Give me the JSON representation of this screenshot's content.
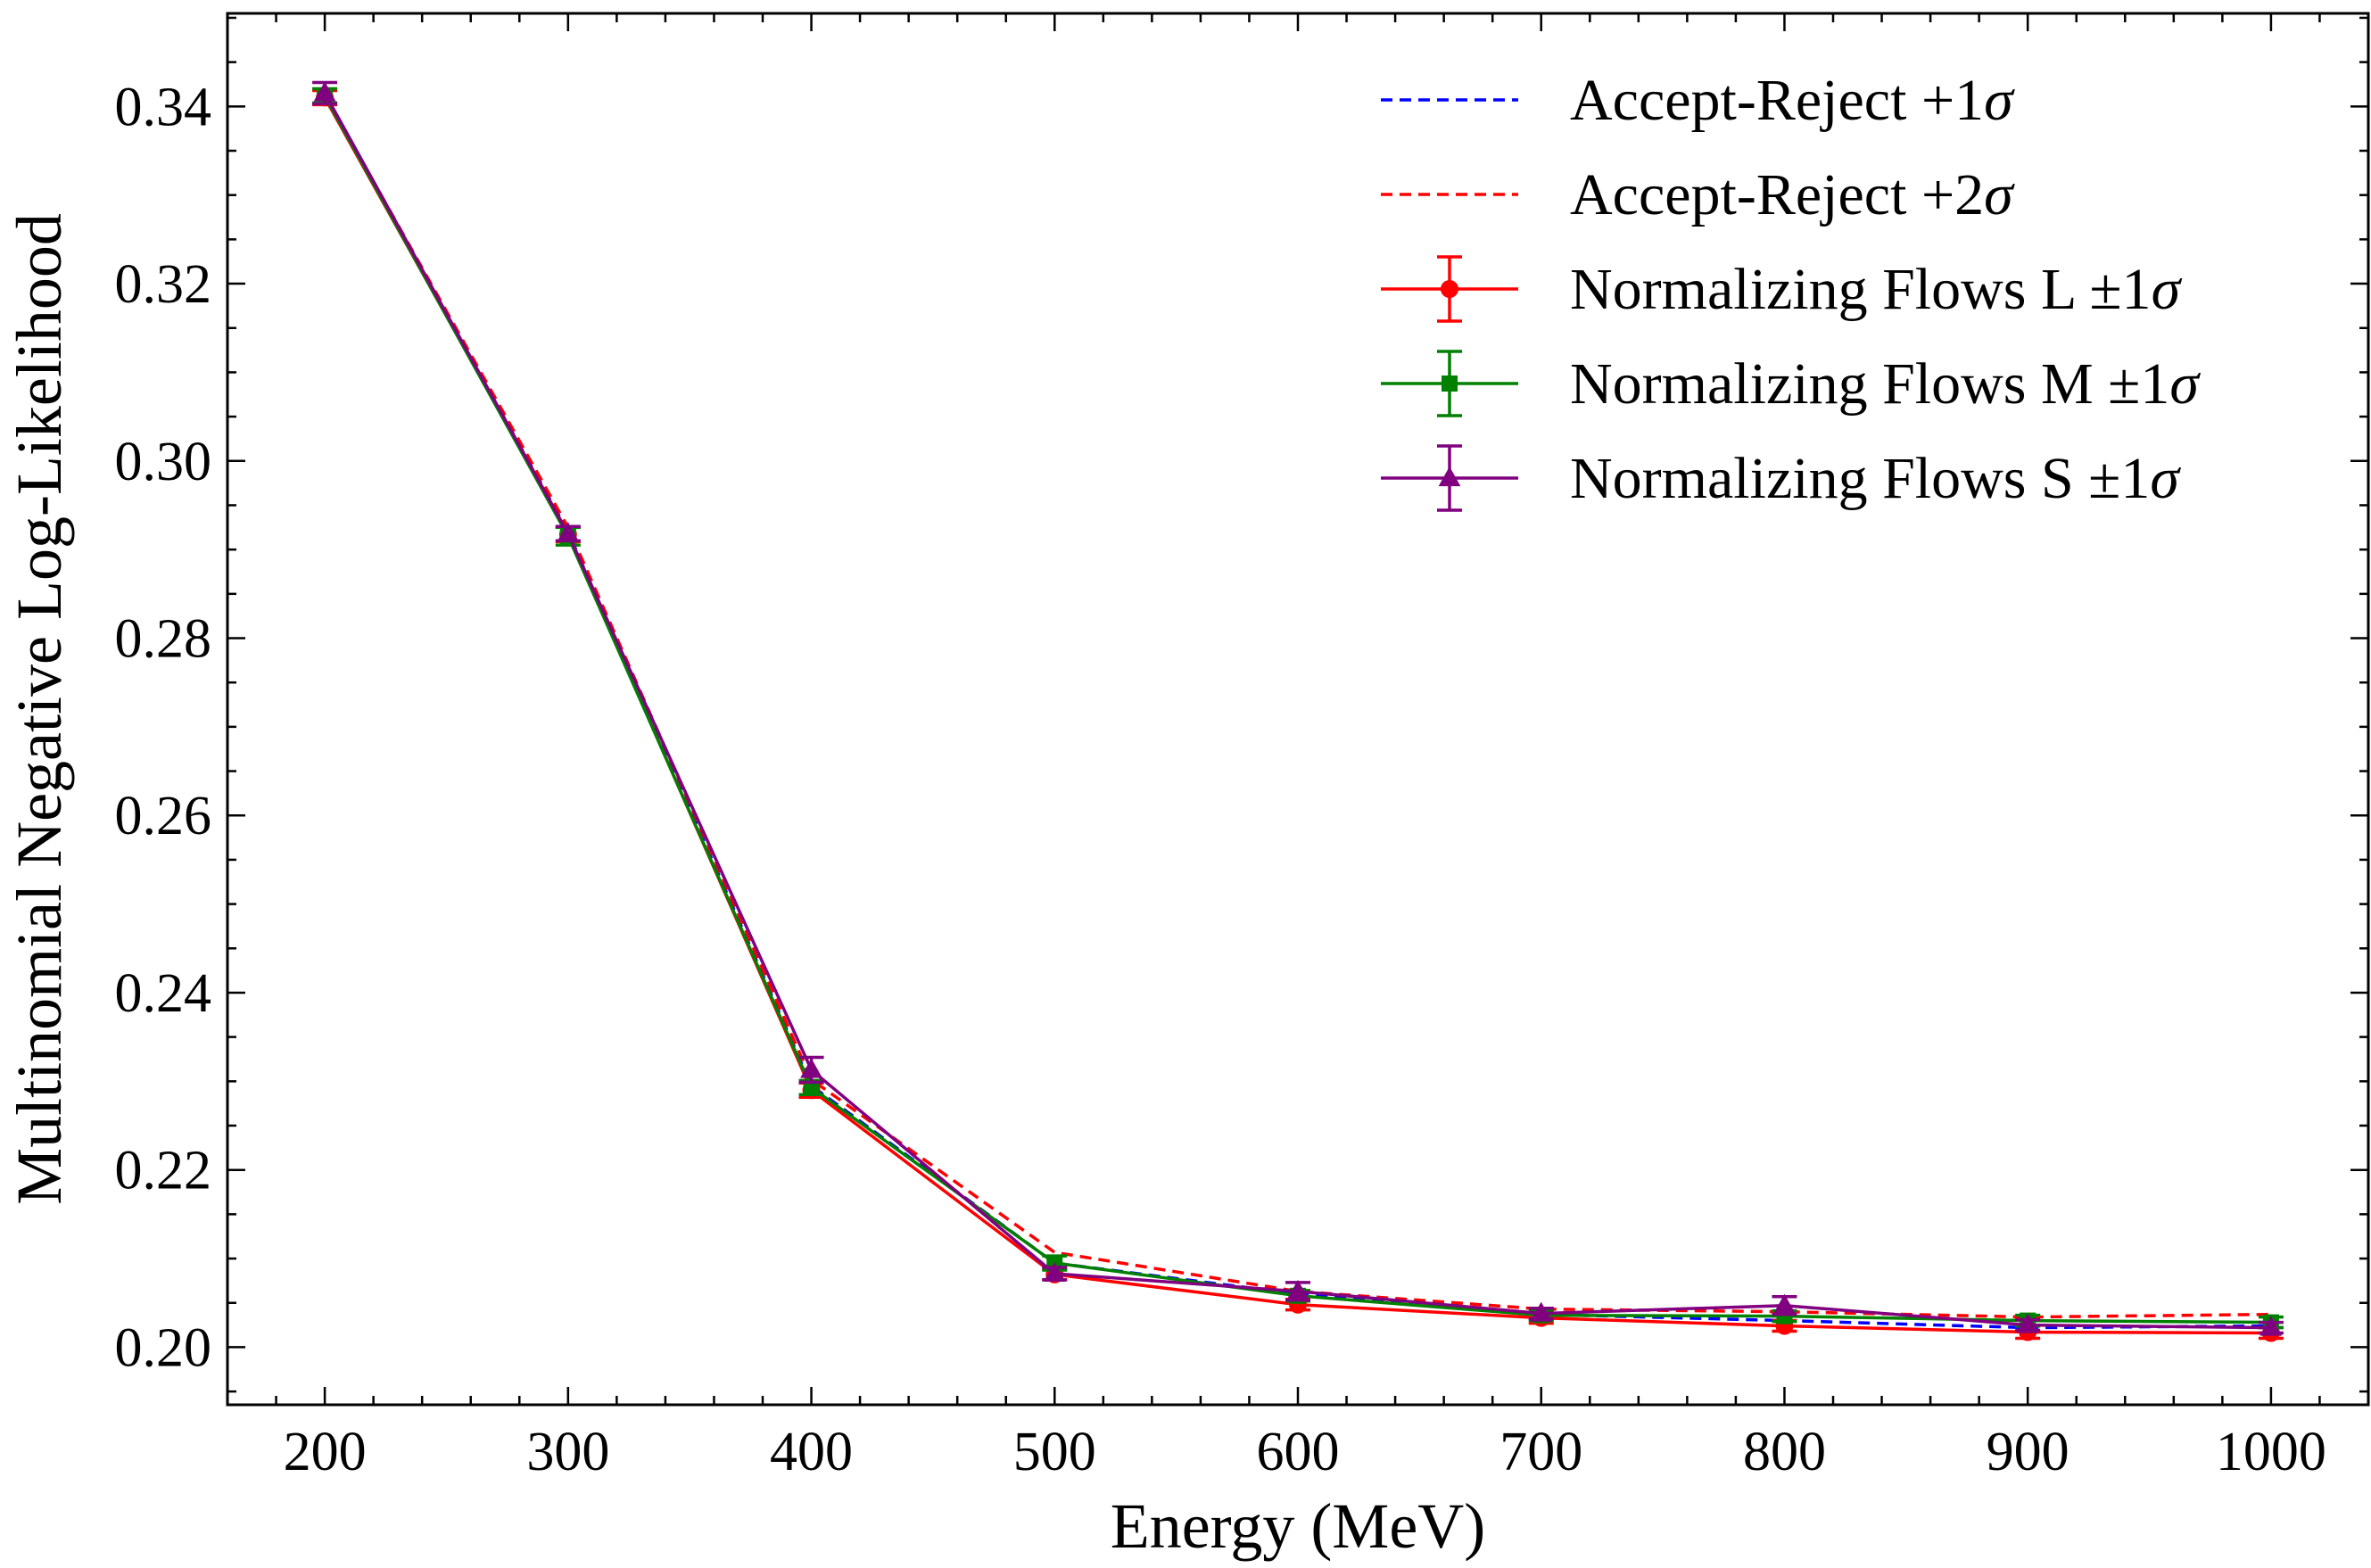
{
  "chart_data": {
    "type": "line",
    "title": "",
    "xlabel": "Energy (MeV)",
    "ylabel": "Multinomial Negative Log-Likelihood",
    "xlim": [
      160,
      1040
    ],
    "ylim": [
      0.1935,
      0.3505
    ],
    "xticks": [
      200,
      300,
      400,
      500,
      600,
      700,
      800,
      900,
      1000
    ],
    "xtick_labels": [
      "200",
      "300",
      "400",
      "500",
      "600",
      "700",
      "800",
      "900",
      "1000"
    ],
    "yticks": [
      0.2,
      0.22,
      0.24,
      0.26,
      0.28,
      0.3,
      0.32,
      0.34
    ],
    "ytick_labels": [
      "0.20",
      "0.22",
      "0.24",
      "0.26",
      "0.28",
      "0.30",
      "0.32",
      "0.34"
    ],
    "grid": false,
    "legend_position": "top-right",
    "x": [
      200,
      300,
      400,
      500,
      600,
      700,
      800,
      900,
      1000
    ],
    "series": [
      {
        "name": "Accept-Reject +1σ",
        "label_main": "Accept-Reject +1",
        "label_sym": "σ",
        "color": "#0000ff",
        "style": "dashed",
        "marker": "none",
        "values": [
          0.341,
          0.292,
          0.2295,
          0.2095,
          0.206,
          0.2037,
          0.203,
          0.2022,
          0.2024
        ],
        "errors": null
      },
      {
        "name": "Accept-Reject +2σ",
        "label_main": "Accept-Reject +2",
        "label_sym": "σ",
        "color": "#ff0000",
        "style": "dashed",
        "marker": "none",
        "values": [
          0.3413,
          0.2925,
          0.2302,
          0.2107,
          0.2063,
          0.2043,
          0.204,
          0.2034,
          0.2037
        ],
        "errors": null
      },
      {
        "name": "Normalizing Flows L ±1σ",
        "label_main": "Normalizing Flows L ±1",
        "label_sym": "σ",
        "color": "#ff0000",
        "style": "solid",
        "marker": "circle",
        "values": [
          0.341,
          0.2917,
          0.229,
          0.2082,
          0.2048,
          0.2033,
          0.2024,
          0.2017,
          0.2016
        ],
        "errors": [
          0.0008,
          0.0008,
          0.0008,
          0.0006,
          0.0006,
          0.0006,
          0.0006,
          0.0007,
          0.0006
        ]
      },
      {
        "name": "Normalizing Flows M ±1σ",
        "label_main": "Normalizing Flows M ±1",
        "label_sym": "σ",
        "color": "#008000",
        "style": "solid",
        "marker": "square",
        "values": [
          0.3412,
          0.2915,
          0.2293,
          0.2095,
          0.2058,
          0.2036,
          0.2035,
          0.203,
          0.2028
        ],
        "errors": [
          0.0008,
          0.001,
          0.0008,
          0.0008,
          0.0006,
          0.0006,
          0.0006,
          0.0006,
          0.0006
        ]
      },
      {
        "name": "Normalizing Flows S ±1σ",
        "label_main": "Normalizing Flows S ±1",
        "label_sym": "σ",
        "color": "#800080",
        "style": "solid",
        "marker": "triangle",
        "values": [
          0.3415,
          0.2918,
          0.2313,
          0.2083,
          0.2063,
          0.2038,
          0.2047,
          0.2025,
          0.2022
        ],
        "errors": [
          0.0012,
          0.0008,
          0.0014,
          0.0007,
          0.001,
          0.0006,
          0.001,
          0.0006,
          0.0006
        ]
      }
    ]
  }
}
